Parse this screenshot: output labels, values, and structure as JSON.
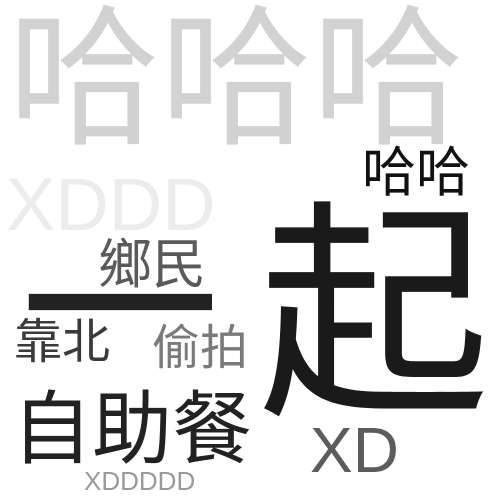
{
  "words": {
    "haha_big": "哈哈哈",
    "xddd": "XDDD",
    "haha_small": "哈哈",
    "qi": "起",
    "xiangmin": "鄉民",
    "yi": "一",
    "kaobei": "靠北",
    "toupai": "偷拍",
    "zizhucan": "自助餐",
    "xd": "XD",
    "xdddddd": "XDDDDD"
  },
  "colors": {
    "background": "#ffffff",
    "light_gray": "#d2d2d2",
    "very_light_gray": "#ececec",
    "mid_gray": "#7a7a7a",
    "dark": "#1a1a1a"
  }
}
